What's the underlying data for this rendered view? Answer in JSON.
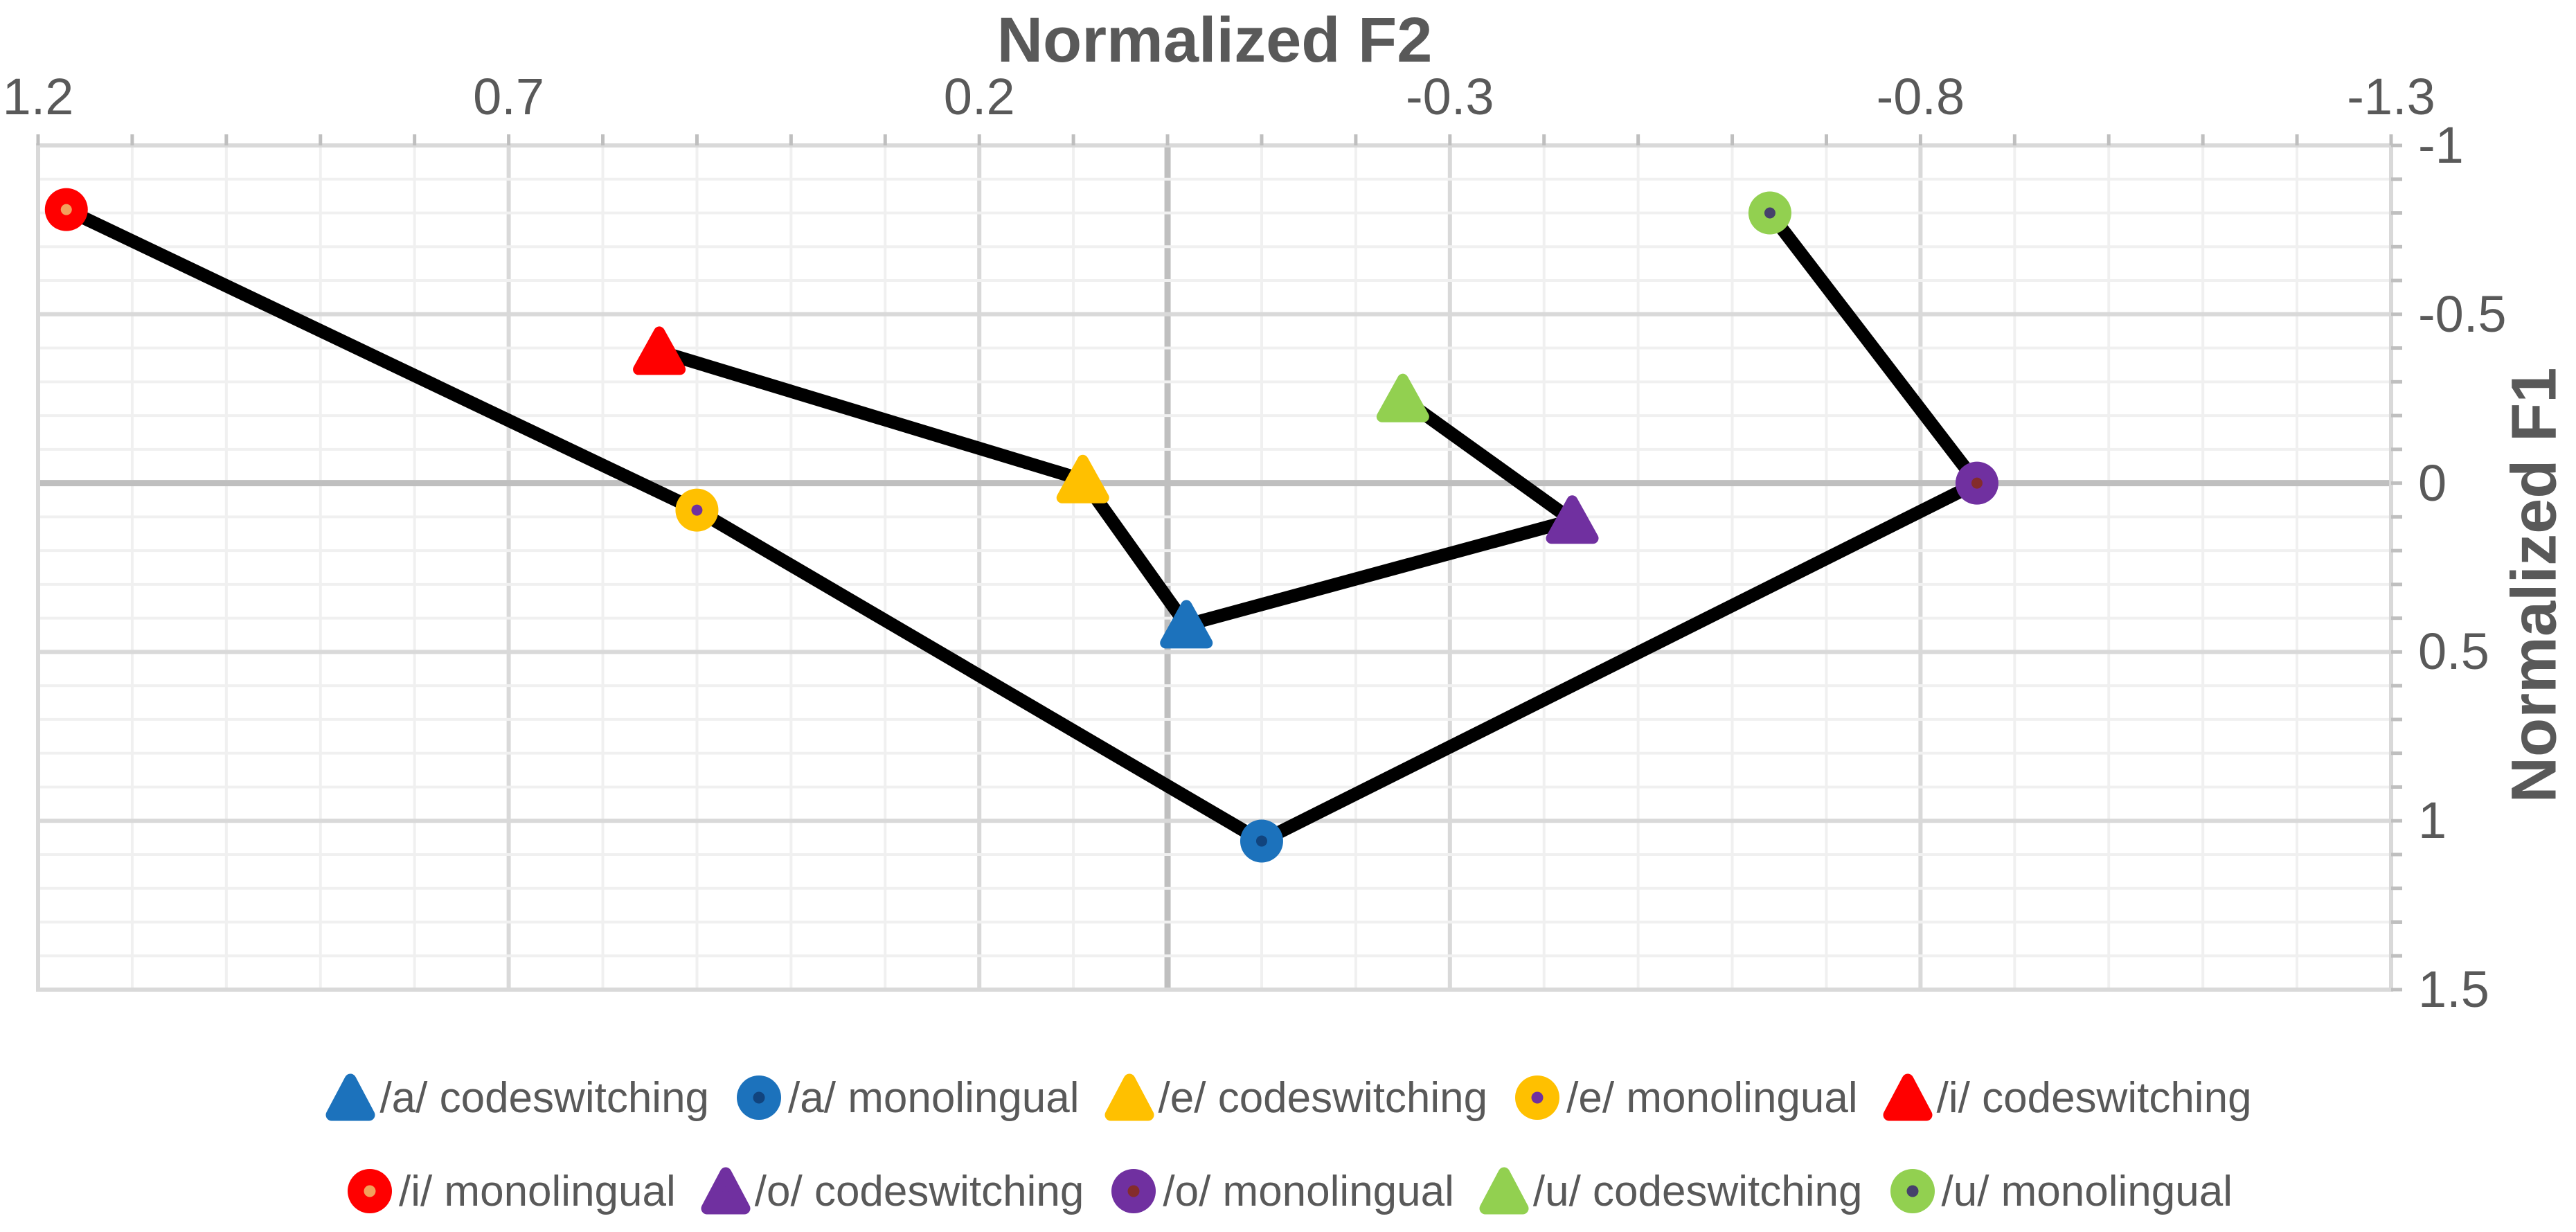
{
  "colors": {
    "text": "#595959",
    "series_line": "#000000",
    "gridline_major": "#D9D9D9",
    "gridline_minor": "#F0F0F0",
    "axis_line": "#BFBFBF",
    "plot_border": "#D9D9D9",
    "background": "#FFFFFF"
  },
  "chart_data": {
    "type": "scatter",
    "x_axis": {
      "title": "Normalized F2",
      "position": "top",
      "tick_labels": [
        "1.2",
        "0.7",
        "0.2",
        "-0.3",
        "-0.8",
        "-1.3"
      ],
      "tick_values": [
        1.2,
        0.7,
        0.2,
        -0.3,
        -0.8,
        -1.3
      ],
      "max_left": 1.2,
      "min_right": -1.3,
      "reversed": true,
      "major_unit": 0.5,
      "minor_unit": 0.1
    },
    "y_axis": {
      "title": "Normalized F1",
      "position": "right",
      "tick_labels": [
        "-1",
        "-0.5",
        "0",
        "0.5",
        "1",
        "1.5"
      ],
      "tick_values": [
        -1,
        -0.5,
        0,
        0.5,
        1,
        1.5
      ],
      "top_value": -1,
      "bottom_value": 1.5,
      "reversed": true,
      "major_unit": 0.5,
      "minor_unit": 0.1
    },
    "grid": "major+minor",
    "legend_position": "bottom",
    "series": [
      {
        "id": "a_cs",
        "name": "/a/ codeswitching",
        "vowel": "/a/",
        "context": "codeswitching",
        "marker": "triangle",
        "color": "#1C72BC",
        "dot_color": null,
        "f2": -0.02,
        "f1": 0.42
      },
      {
        "id": "a_mono",
        "name": "/a/ monolingual",
        "vowel": "/a/",
        "context": "monolingual",
        "marker": "circle",
        "color": "#1C72BC",
        "dot_color": "#11447E",
        "f2": -0.1,
        "f1": 1.06
      },
      {
        "id": "e_cs",
        "name": "/e/ codeswitching",
        "vowel": "/e/",
        "context": "codeswitching",
        "marker": "triangle",
        "color": "#FFC000",
        "dot_color": null,
        "f2": 0.09,
        "f1": -0.01
      },
      {
        "id": "e_mono",
        "name": "/e/ monolingual",
        "vowel": "/e/",
        "context": "monolingual",
        "marker": "circle",
        "color": "#FFC000",
        "dot_color": "#7030A0",
        "f2": 0.5,
        "f1": 0.08
      },
      {
        "id": "i_cs",
        "name": "/i/ codeswitching",
        "vowel": "/i/",
        "context": "codeswitching",
        "marker": "triangle",
        "color": "#FF0000",
        "dot_color": null,
        "f2": 0.54,
        "f1": -0.39
      },
      {
        "id": "i_mono",
        "name": "/i/ monolingual",
        "vowel": "/i/",
        "context": "monolingual",
        "marker": "circle",
        "color": "#FF0000",
        "dot_color": "#F2A15C",
        "f2": 1.17,
        "f1": -0.81
      },
      {
        "id": "o_cs",
        "name": "/o/ codeswitching",
        "vowel": "/o/",
        "context": "codeswitching",
        "marker": "triangle",
        "color": "#7030A0",
        "dot_color": null,
        "f2": -0.43,
        "f1": 0.11
      },
      {
        "id": "o_mono",
        "name": "/o/ monolingual",
        "vowel": "/o/",
        "context": "monolingual",
        "marker": "circle",
        "color": "#7030A0",
        "dot_color": "#842C2C",
        "f2": -0.86,
        "f1": 0.0
      },
      {
        "id": "u_cs",
        "name": "/u/ codeswitching",
        "vowel": "/u/",
        "context": "codeswitching",
        "marker": "triangle",
        "color": "#92D050",
        "dot_color": null,
        "f2": -0.25,
        "f1": -0.25
      },
      {
        "id": "u_mono",
        "name": "/u/ monolingual",
        "vowel": "/u/",
        "context": "monolingual",
        "marker": "circle",
        "color": "#92D050",
        "dot_color": "#46406B",
        "f2": -0.64,
        "f1": -0.8
      }
    ],
    "paths": [
      {
        "name": "codeswitching",
        "series_ids": [
          "i_cs",
          "e_cs",
          "a_cs",
          "o_cs",
          "u_cs"
        ]
      },
      {
        "name": "monolingual",
        "series_ids": [
          "i_mono",
          "e_mono",
          "a_mono",
          "o_mono",
          "u_mono"
        ]
      }
    ],
    "legend_rows": [
      [
        "a_cs",
        "a_mono",
        "e_cs",
        "e_mono",
        "i_cs"
      ],
      [
        "i_mono",
        "o_cs",
        "o_mono",
        "u_cs",
        "u_mono"
      ]
    ]
  }
}
